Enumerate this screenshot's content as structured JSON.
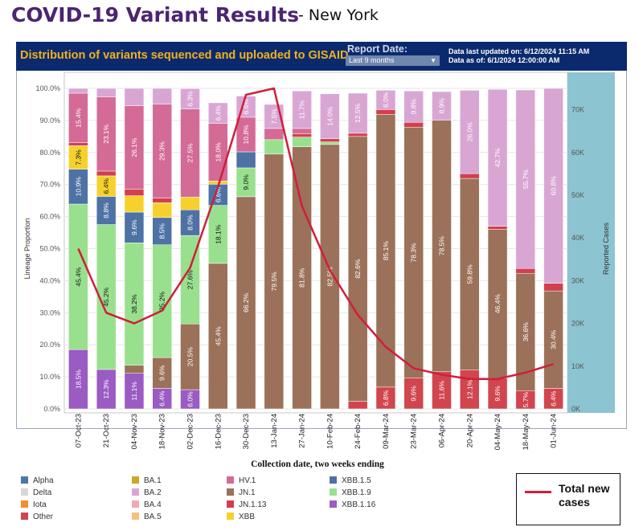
{
  "page": {
    "title": "COVID-19 Variant Results",
    "subtitle": "- New York"
  },
  "banner": {
    "title": "Distribution of variants sequenced and uploaded to GISAID",
    "report_label": "Report Date:",
    "report_value": "Last 9 months",
    "last_updated": "Data last updated on: 6/12/2024 11:15 AM",
    "data_as_of": "Data as of: 6/1/2024 12:00:00 AM"
  },
  "colors": {
    "Alpha": "#4e79a7",
    "Delta": "#d7d7d7",
    "Iota": "#f28e2b",
    "Other": "#d1454f",
    "BA.1": "#c8a82a",
    "BA.2": "#d9a6d4",
    "BA.4": "#f0a8b6",
    "BA.5": "#f5c27b",
    "HV.1": "#d36b96",
    "JN.1": "#9b7159",
    "JN.1.13": "#d33f4e",
    "XBB": "#f6d12e",
    "XBB.1.5": "#4f72a4",
    "XBB.1.9": "#99e08e",
    "XBB.1.16": "#9a5bc2",
    "cases_line": "#d01e3c",
    "cases_panel": "#8cc4d1"
  },
  "legend": {
    "columns": [
      [
        "Alpha",
        "Delta",
        "Iota",
        "Other"
      ],
      [
        "BA.1",
        "BA.2",
        "BA.4",
        "BA.5"
      ],
      [
        "HV.1",
        "JN.1",
        "JN.1.13",
        "XBB"
      ],
      [
        "XBB.1.5",
        "XBB.1.9",
        "XBB.1.16"
      ]
    ],
    "cases_label_line1": "Total new",
    "cases_label_line2": "cases"
  },
  "chart_data": {
    "type": "bar",
    "stacked": true,
    "title": "Distribution of variants sequenced and uploaded to GISAID",
    "xlabel": "Collection date, two weeks ending",
    "ylabel": "Lineage Proportion",
    "y2label": "Reported Cases",
    "ylim": [
      0,
      100
    ],
    "y2lim": [
      0,
      75000
    ],
    "yticks": [
      "0.0%",
      "10.0%",
      "20.0%",
      "30.0%",
      "40.0%",
      "50.0%",
      "60.0%",
      "70.0%",
      "80.0%",
      "90.0%",
      "100.0%"
    ],
    "y2ticks": [
      "0K",
      "10K",
      "20K",
      "30K",
      "40K",
      "50K",
      "60K",
      "70K"
    ],
    "categories": [
      "07-Oct-23",
      "21-Oct-23",
      "04-Nov-23",
      "18-Nov-23",
      "02-Dec-23",
      "16-Dec-23",
      "30-Dec-23",
      "13-Jan-24",
      "27-Jan-24",
      "10-Feb-24",
      "24-Feb-24",
      "09-Mar-24",
      "23-Mar-24",
      "06-Apr-24",
      "20-Apr-24",
      "04-May-24",
      "18-May-24",
      "01-Jun-24"
    ],
    "series": [
      {
        "name": "Other",
        "values": [
          0,
          0,
          0,
          0,
          0,
          0,
          0,
          0,
          0,
          0,
          2.4,
          6.8,
          9.6,
          11.6,
          12.1,
          9.6,
          5.7,
          6.4
        ]
      },
      {
        "name": "XBB.1.16",
        "values": [
          18.5,
          12.3,
          11.1,
          6.4,
          6.0,
          0,
          0,
          0,
          0,
          0,
          0,
          0,
          0,
          0,
          0,
          0,
          0,
          0
        ]
      },
      {
        "name": "JN.1",
        "values": [
          0,
          0,
          2.5,
          9.6,
          20.5,
          45.4,
          66.2,
          79.5,
          81.8,
          82.5,
          82.6,
          85.1,
          78.3,
          78.5,
          59.8,
          46.4,
          36.6,
          30.4
        ]
      },
      {
        "name": "XBB.1.9",
        "values": [
          45.4,
          45.2,
          38.2,
          35.2,
          27.6,
          18.1,
          9.0,
          4.5,
          3.0,
          0.8,
          0,
          0,
          0,
          0,
          0,
          0,
          0,
          0
        ]
      },
      {
        "name": "XBB.1.5",
        "values": [
          10.9,
          8.8,
          9.6,
          8.5,
          8.0,
          6.6,
          5.0,
          0,
          0,
          0,
          0,
          0,
          0,
          0,
          0,
          0,
          0,
          0
        ]
      },
      {
        "name": "XBB",
        "values": [
          7.3,
          6.4,
          5.1,
          4.6,
          4.0,
          1.0,
          0,
          0,
          0,
          0,
          0,
          0,
          0,
          0,
          0,
          0,
          0,
          0
        ]
      },
      {
        "name": "JN.1.13",
        "values": [
          1.0,
          1.5,
          2.0,
          1.5,
          0,
          0,
          0,
          0,
          1.0,
          1.0,
          1.0,
          1.5,
          1.5,
          0,
          1.5,
          1.0,
          1.5,
          2.4
        ]
      },
      {
        "name": "HV.1",
        "values": [
          15.4,
          23.1,
          26.1,
          29.3,
          27.5,
          18.0,
          10.8,
          3.5,
          1.7,
          0,
          0,
          0,
          0,
          0,
          0,
          0,
          0,
          0
        ]
      },
      {
        "name": "BA.2",
        "values": [
          1.5,
          2.7,
          5.4,
          4.9,
          6.3,
          6.4,
          6.6,
          7.5,
          11.7,
          14.0,
          12.5,
          6.0,
          9.8,
          8.9,
          26.0,
          42.7,
          55.7,
          60.8
        ]
      }
    ],
    "bar_labels": [
      {
        "series": "XBB.1.16",
        "values": [
          "18.5%",
          "12.3%",
          "11.1%",
          "6.4%",
          "6.0%",
          "",
          "",
          "",
          "",
          "",
          "",
          "",
          "",
          "",
          "",
          "",
          "",
          ""
        ]
      },
      {
        "series": "Other",
        "values": [
          "",
          "",
          "",
          "",
          "",
          "",
          "",
          "",
          "",
          "",
          "",
          "6.8%",
          "9.6%",
          "11.6%",
          "12.1%",
          "9.6%",
          "5.7%",
          "6.4%"
        ]
      },
      {
        "series": "JN.1",
        "values": [
          "",
          "",
          "",
          "9.6%",
          "20.5%",
          "45.4%",
          "66.2%",
          "79.5%",
          "81.8%",
          "82.5%",
          "82.6%",
          "85.1%",
          "78.3%",
          "78.5%",
          "59.8%",
          "46.4%",
          "36.6%",
          "30.4%"
        ]
      },
      {
        "series": "XBB.1.9",
        "values": [
          "45.4%",
          "45.2%",
          "38.2%",
          "35.2%",
          "27.6%",
          "18.1%",
          "9.0%",
          "",
          "",
          "",
          "",
          "",
          "",
          "",
          "",
          "",
          "",
          ""
        ]
      },
      {
        "series": "XBB.1.5",
        "values": [
          "10.9%",
          "8.8%",
          "9.6%",
          "8.5%",
          "8.0%",
          "6.6%",
          "",
          "",
          "",
          "",
          "",
          "",
          "",
          "",
          "",
          "",
          "",
          ""
        ]
      },
      {
        "series": "XBB",
        "values": [
          "7.3%",
          "6.4%",
          "",
          "",
          "",
          "",
          "",
          "",
          "",
          "",
          "",
          "",
          "",
          "",
          "",
          "",
          "",
          ""
        ]
      },
      {
        "series": "HV.1",
        "values": [
          "15.4%",
          "23.1%",
          "26.1%",
          "29.3%",
          "27.5%",
          "18.0%",
          "10.8%",
          "",
          "",
          "",
          "",
          "",
          "",
          "",
          "",
          "",
          "",
          ""
        ]
      },
      {
        "series": "BA.2",
        "values": [
          "",
          "",
          "",
          "",
          "6.3%",
          "6.4%",
          "6.6%",
          "7.5%",
          "11.7%",
          "14.0%",
          "12.5%",
          "6.0%",
          "9.8%",
          "8.9%",
          "26.0%",
          "42.7%",
          "55.7%",
          "60.8%"
        ]
      }
    ],
    "total_cases": {
      "name": "Total new cases",
      "values": [
        37500,
        22500,
        20000,
        23000,
        33000,
        52000,
        73500,
        75000,
        47500,
        32500,
        22000,
        14500,
        9500,
        8000,
        7000,
        7000,
        8500,
        10500
      ]
    }
  }
}
